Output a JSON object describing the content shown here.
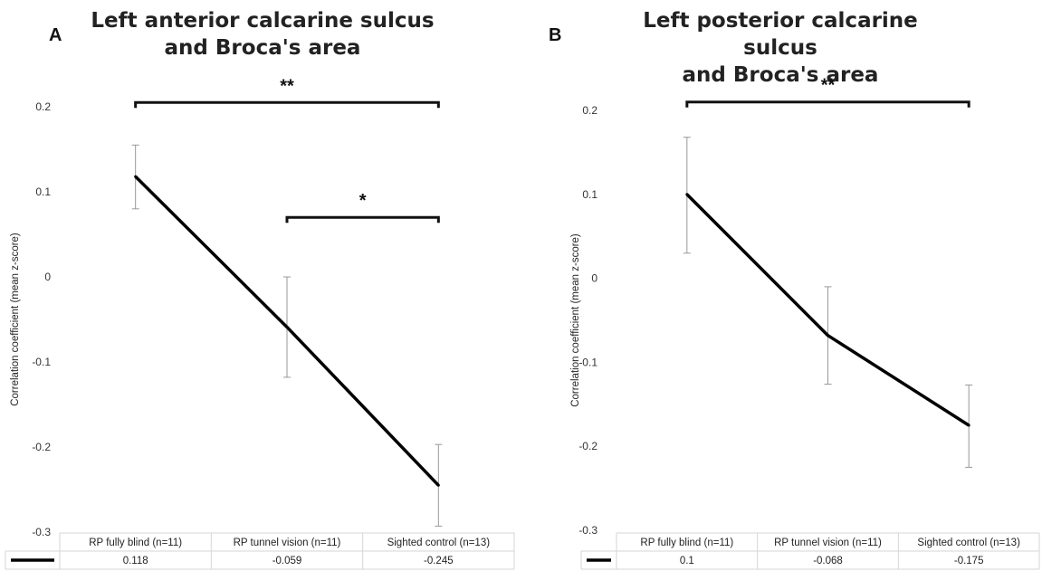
{
  "chart_data": [
    {
      "panel_label": "A",
      "type": "line",
      "title_lines": [
        "Left anterior calcarine sulcus",
        "and Broca's area"
      ],
      "ylabel": "Correlation coefficient (mean z-score)",
      "ylim": [
        -0.3,
        0.2
      ],
      "yticks": [
        0.2,
        0.1,
        0,
        -0.1,
        -0.2,
        -0.3
      ],
      "ytick_labels": [
        "0.2",
        "0.1",
        "0",
        "-0.1",
        "-0.2",
        "-0.3"
      ],
      "categories": [
        "RP fully blind (n=11)",
        "RP tunnel vision (n=11)",
        "Sighted control (n=13)"
      ],
      "series": [
        {
          "values": [
            0.118,
            -0.059,
            -0.245
          ],
          "error_low": [
            0.08,
            -0.118,
            -0.293
          ],
          "error_high": [
            0.155,
            0.0,
            -0.197
          ]
        }
      ],
      "table_values": [
        "0.118",
        "-0.059",
        "-0.245"
      ],
      "significance": [
        {
          "from": 0,
          "to": 2,
          "label": "**",
          "level": 0.205
        },
        {
          "from": 1,
          "to": 2,
          "label": "*",
          "level": 0.07
        }
      ],
      "line_color": "#000000",
      "grid": false,
      "legend": "data-table-bottom"
    },
    {
      "panel_label": "B",
      "type": "line",
      "title_lines": [
        "Left posterior calcarine sulcus",
        "and Broca's area"
      ],
      "ylabel": "Correlation coefficient (mean z-score)",
      "ylim": [
        -0.3,
        0.2
      ],
      "yticks": [
        0.2,
        0.1,
        0,
        -0.1,
        -0.2,
        -0.3
      ],
      "ytick_labels": [
        "0.2",
        "0.1",
        "0",
        "-0.1",
        "-0.2",
        "-0.3"
      ],
      "categories": [
        "RP fully blind (n=11)",
        "RP tunnel vision (n=11)",
        "Sighted control (n=13)"
      ],
      "series": [
        {
          "values": [
            0.1,
            -0.068,
            -0.175
          ],
          "error_low": [
            0.03,
            -0.126,
            -0.225
          ],
          "error_high": [
            0.168,
            -0.01,
            -0.127
          ]
        }
      ],
      "table_values": [
        "0.1",
        "-0.068",
        "-0.175"
      ],
      "significance": [
        {
          "from": 0,
          "to": 2,
          "label": "**",
          "level": 0.21
        }
      ],
      "line_color": "#000000",
      "grid": false,
      "legend": "data-table-bottom"
    }
  ]
}
